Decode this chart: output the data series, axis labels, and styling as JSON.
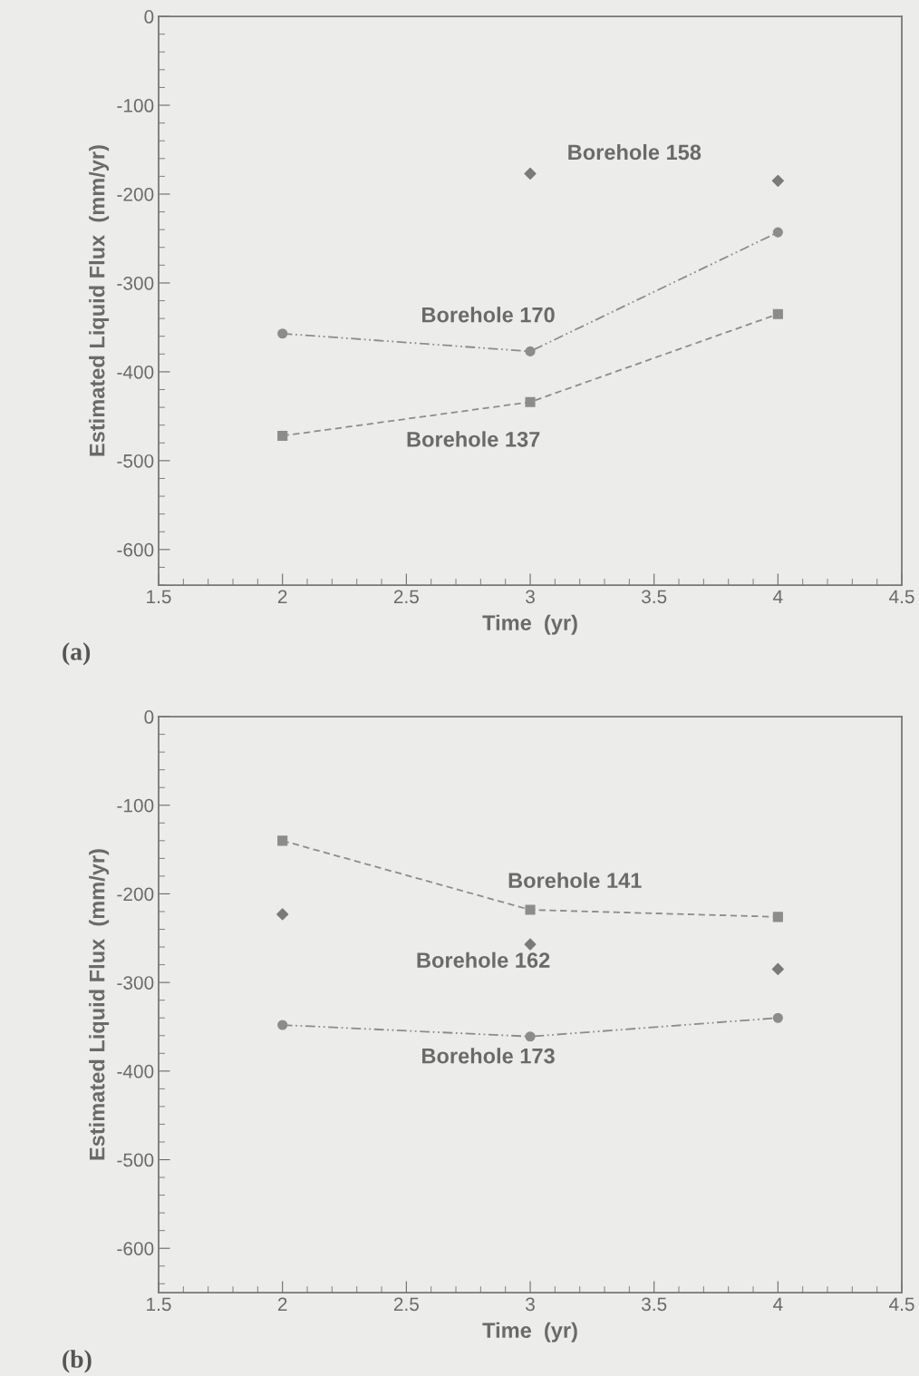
{
  "chart_data": [
    {
      "type": "line",
      "xlabel": "Time  (yr)",
      "ylabel": "Estimated Liquid Flux  (mm/yr)",
      "xlim": [
        1.5,
        4.5
      ],
      "xticks": [
        1.5,
        2,
        2.5,
        3,
        3.5,
        4,
        4.5
      ],
      "ylim": [
        -640,
        0
      ],
      "yticks": [
        0,
        -100,
        -200,
        -300,
        -400,
        -500,
        -600
      ],
      "grid": false,
      "legend": false,
      "series": [
        {
          "type": "scatter",
          "name": "Borehole 158",
          "color": "#7a7a7a",
          "marker": "diamond",
          "x": [
            3,
            4
          ],
          "values": [
            -177,
            -185
          ]
        },
        {
          "name": "Borehole 170",
          "color": "#8c8c8c",
          "marker": "circle",
          "line_style": "dashdot",
          "x": [
            2,
            3,
            4
          ],
          "values": [
            -357,
            -377,
            -243
          ]
        },
        {
          "name": "Borehole 137",
          "color": "#8c8c8c",
          "marker": "square",
          "line_style": "dashed",
          "x": [
            2,
            3,
            4
          ],
          "values": [
            -472,
            -434,
            -335
          ]
        }
      ],
      "annotations": [
        "(a)"
      ]
    },
    {
      "type": "line",
      "xlabel": "Time  (yr)",
      "ylabel": "Estimated Liquid Flux  (mm/yr)",
      "xlim": [
        1.5,
        4.5
      ],
      "xticks": [
        1.5,
        2,
        2.5,
        3,
        3.5,
        4,
        4.5
      ],
      "ylim": [
        -650,
        0
      ],
      "yticks": [
        0,
        -100,
        -200,
        -300,
        -400,
        -500,
        -600
      ],
      "grid": false,
      "legend": false,
      "series": [
        {
          "name": "Borehole 141",
          "color": "#8c8c8c",
          "marker": "square",
          "line_style": "dashed",
          "x": [
            2,
            3,
            4
          ],
          "values": [
            -140,
            -218,
            -226
          ]
        },
        {
          "type": "scatter",
          "name": "Borehole 162",
          "color": "#7a7a7a",
          "marker": "diamond",
          "x": [
            2,
            3,
            4
          ],
          "values": [
            -223,
            -257,
            -285
          ]
        },
        {
          "name": "Borehole 173",
          "color": "#8c8c8c",
          "marker": "circle",
          "line_style": "dashdot",
          "x": [
            2,
            3,
            4
          ],
          "values": [
            -348,
            -361,
            -340
          ]
        }
      ],
      "annotations": [
        "(b)"
      ]
    }
  ]
}
